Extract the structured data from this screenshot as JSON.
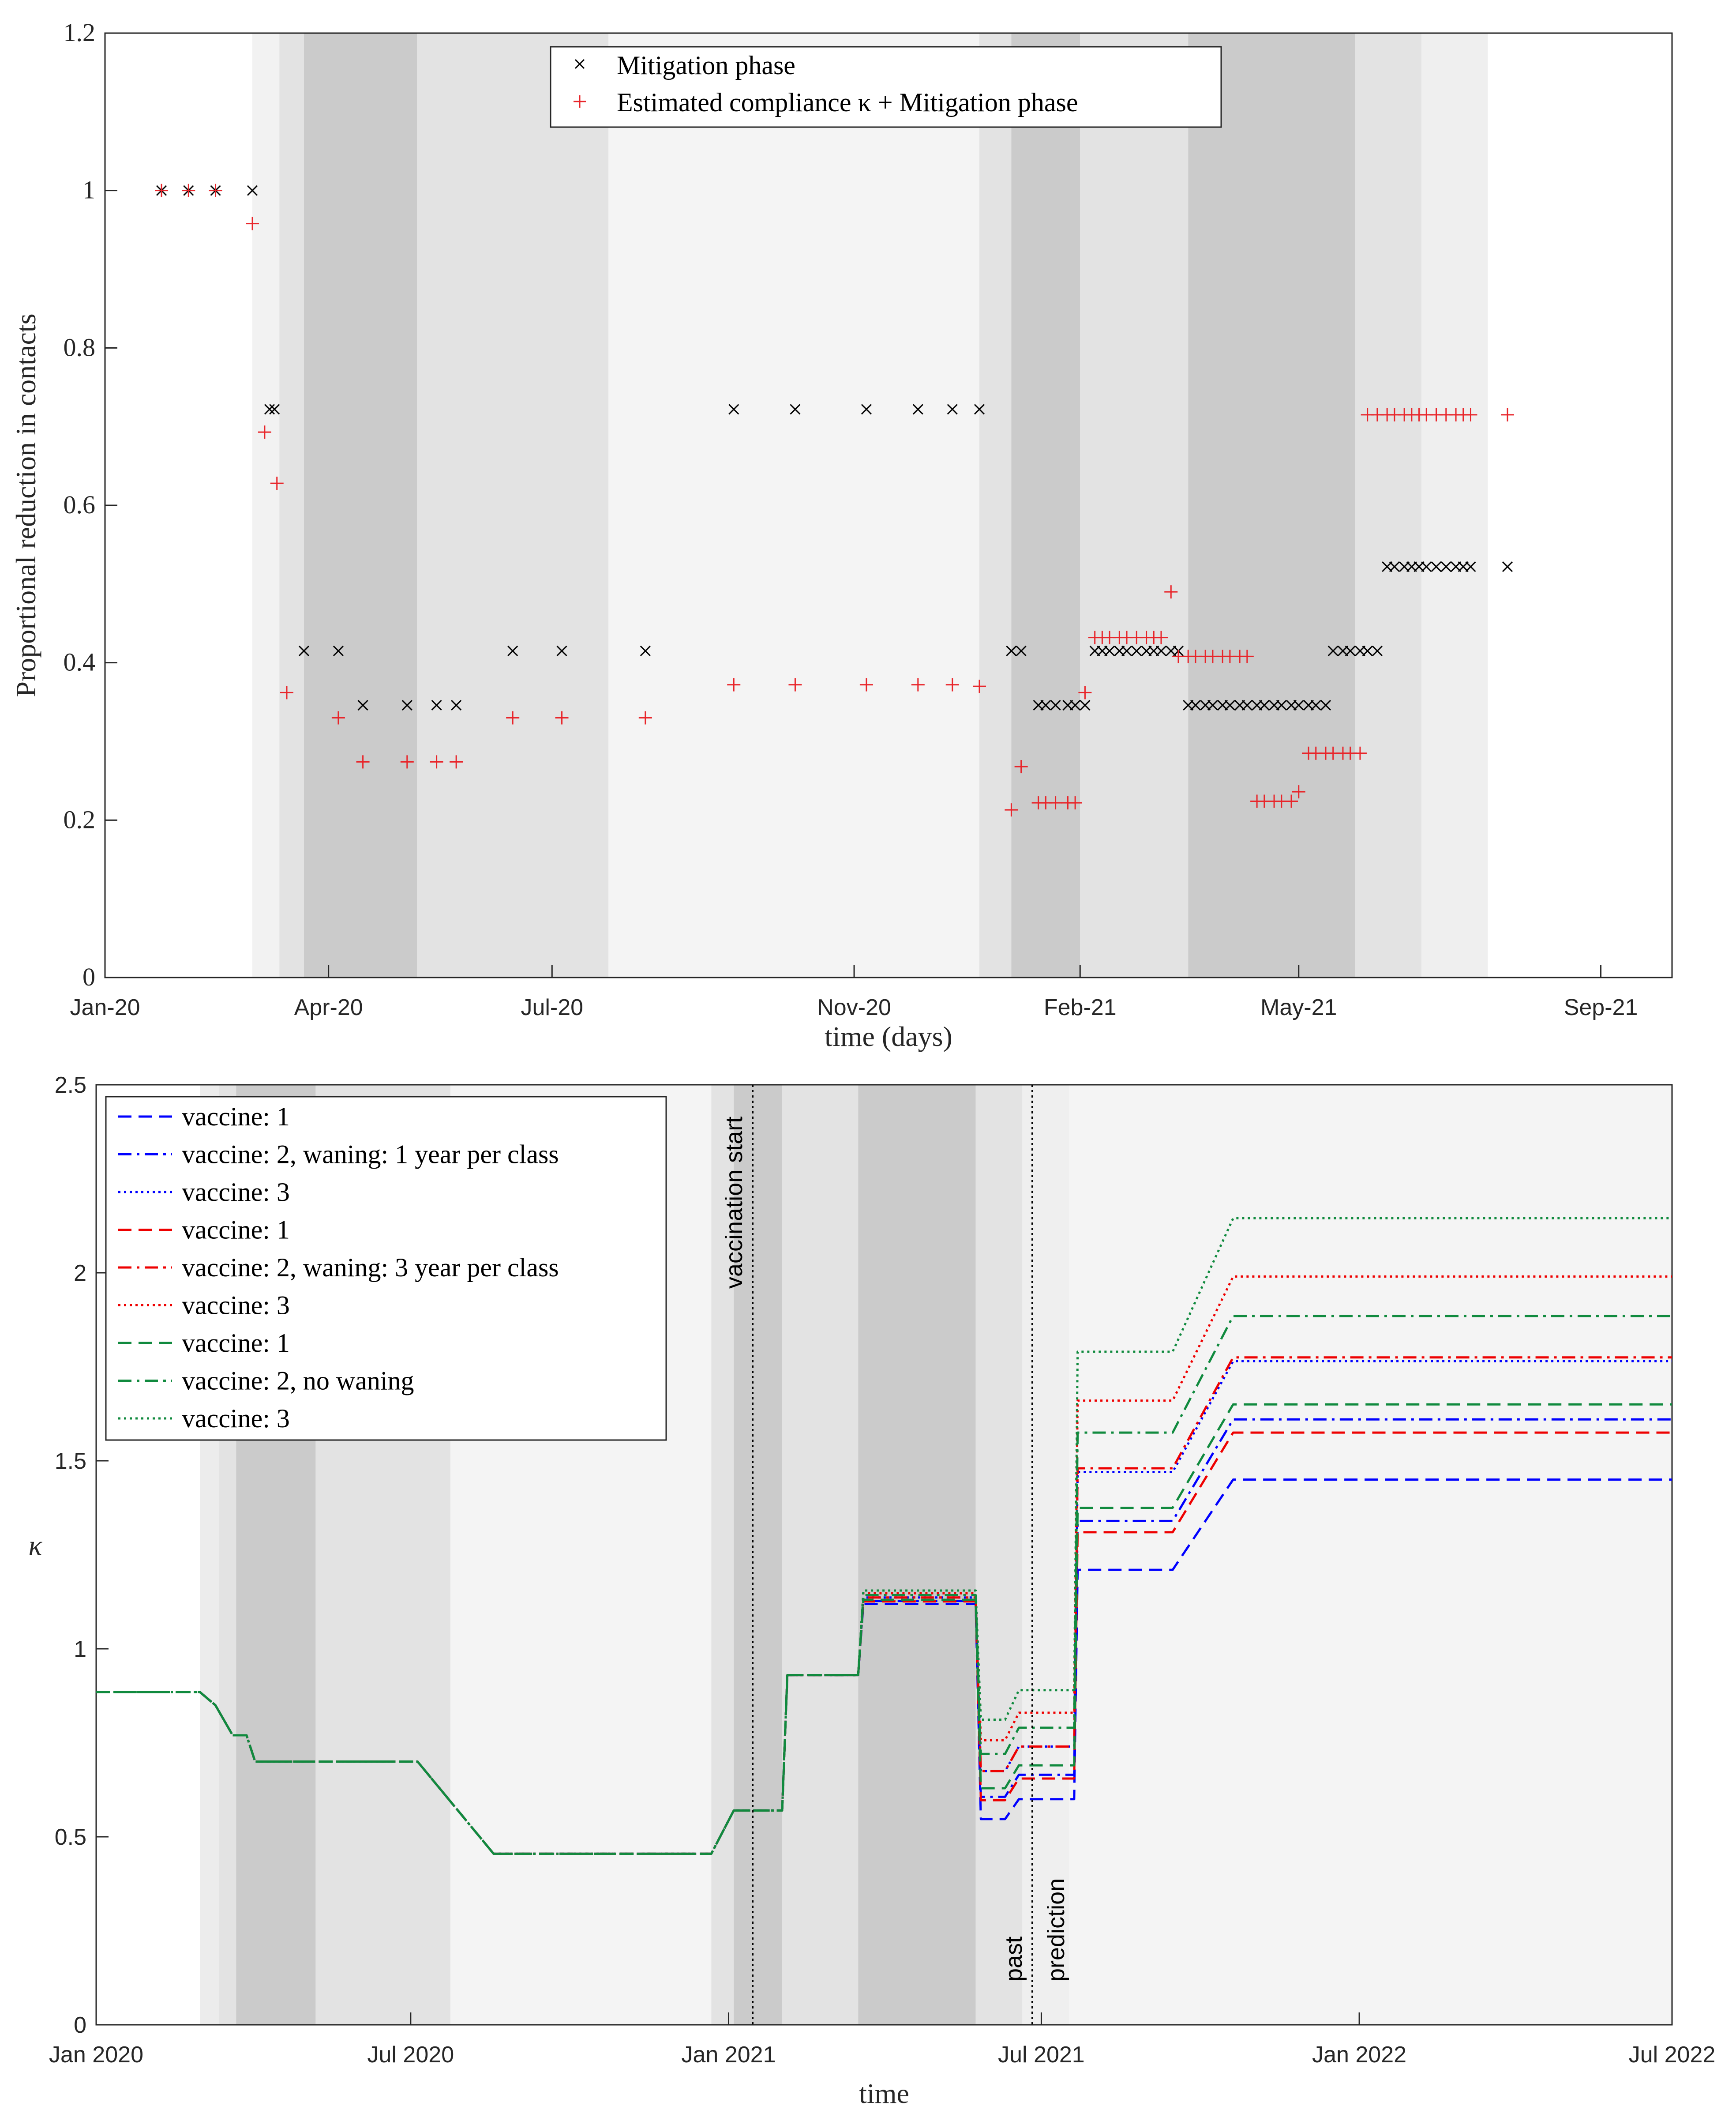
{
  "chart_data": [
    {
      "type": "scatter",
      "xlabel": "time (days)",
      "ylabel": "Proportional reduction in contacts",
      "ylim": [
        0,
        1.2
      ],
      "xlim": [
        "2020-01-01",
        "2021-09-30"
      ],
      "x_tick_labels": [
        "Jan-20",
        "Apr-20",
        "Jul-20",
        "Nov-20",
        "Feb-21",
        "May-21",
        "Sep-21"
      ],
      "y_tick_labels": [
        "0",
        "0.2",
        "0.4",
        "0.6",
        "0.8",
        "1",
        "1.2"
      ],
      "legend_position": "top-center",
      "legend": [
        "Mitigation phase",
        "Estimated compliance κ + Mitigation phase"
      ],
      "series": [
        {
          "name": "Mitigation phase",
          "marker": "x",
          "color": "#000000",
          "x": [
            "2020-01-24",
            "2020-02-04",
            "2020-02-15",
            "2020-03-01",
            "2020-03-08",
            "2020-03-10",
            "2020-03-22",
            "2020-04-05",
            "2020-04-15",
            "2020-05-03",
            "2020-05-15",
            "2020-05-23",
            "2020-06-15",
            "2020-07-05",
            "2020-08-08",
            "2020-09-13",
            "2020-10-08",
            "2020-11-06",
            "2020-11-27",
            "2020-12-11",
            "2020-12-22",
            "2021-01-04",
            "2021-01-08",
            "2021-01-15",
            "2021-01-18",
            "2021-01-22",
            "2021-01-27",
            "2021-01-30",
            "2021-02-03",
            "2021-02-07",
            "2021-02-10",
            "2021-02-13",
            "2021-02-17",
            "2021-02-20",
            "2021-02-24",
            "2021-02-28",
            "2021-03-03",
            "2021-03-06",
            "2021-03-10",
            "2021-03-13",
            "2021-03-17",
            "2021-03-20",
            "2021-03-24",
            "2021-03-27",
            "2021-03-31",
            "2021-04-03",
            "2021-04-07",
            "2021-04-10",
            "2021-04-14",
            "2021-04-17",
            "2021-04-21",
            "2021-04-24",
            "2021-04-28",
            "2021-05-01",
            "2021-05-05",
            "2021-05-08",
            "2021-05-12",
            "2021-05-15",
            "2021-05-19",
            "2021-05-22",
            "2021-05-26",
            "2021-05-29",
            "2021-06-02",
            "2021-06-06",
            "2021-06-09",
            "2021-06-13",
            "2021-06-16",
            "2021-06-19",
            "2021-06-22",
            "2021-06-26",
            "2021-06-30",
            "2021-07-04",
            "2021-07-07",
            "2021-07-10",
            "2021-07-25"
          ],
          "y": [
            1,
            1,
            1,
            1,
            0.722,
            0.722,
            0.415,
            0.415,
            0.346,
            0.346,
            0.346,
            0.346,
            0.415,
            0.415,
            0.415,
            0.722,
            0.722,
            0.722,
            0.722,
            0.722,
            0.722,
            0.415,
            0.415,
            0.346,
            0.346,
            0.346,
            0.346,
            0.346,
            0.346,
            0.415,
            0.415,
            0.415,
            0.415,
            0.415,
            0.415,
            0.415,
            0.415,
            0.415,
            0.415,
            0.415,
            0.346,
            0.346,
            0.346,
            0.346,
            0.346,
            0.346,
            0.346,
            0.346,
            0.346,
            0.346,
            0.346,
            0.346,
            0.346,
            0.346,
            0.346,
            0.346,
            0.346,
            0.415,
            0.415,
            0.415,
            0.415,
            0.415,
            0.415,
            0.522,
            0.522,
            0.522,
            0.522,
            0.522,
            0.522,
            0.522,
            0.522,
            0.522,
            0.522,
            0.522,
            0.522
          ]
        },
        {
          "name": "Estimated compliance κ + Mitigation phase",
          "marker": "+",
          "color": "#e8252a",
          "x": [
            "2020-01-24",
            "2020-02-04",
            "2020-02-15",
            "2020-03-01",
            "2020-03-06",
            "2020-03-11",
            "2020-03-15",
            "2020-04-05",
            "2020-04-15",
            "2020-05-03",
            "2020-05-15",
            "2020-05-23",
            "2020-06-15",
            "2020-07-05",
            "2020-08-08",
            "2020-09-13",
            "2020-10-08",
            "2020-11-06",
            "2020-11-27",
            "2020-12-11",
            "2020-12-22",
            "2021-01-04",
            "2021-01-08",
            "2021-01-15",
            "2021-01-18",
            "2021-01-22",
            "2021-01-27",
            "2021-01-30",
            "2021-02-03",
            "2021-02-07",
            "2021-02-10",
            "2021-02-13",
            "2021-02-17",
            "2021-02-20",
            "2021-02-24",
            "2021-02-28",
            "2021-03-03",
            "2021-03-06",
            "2021-03-10",
            "2021-03-13",
            "2021-03-17",
            "2021-03-20",
            "2021-03-24",
            "2021-03-27",
            "2021-03-31",
            "2021-04-03",
            "2021-04-07",
            "2021-04-10",
            "2021-04-14",
            "2021-04-17",
            "2021-04-21",
            "2021-04-24",
            "2021-04-28",
            "2021-05-01",
            "2021-05-05",
            "2021-05-08",
            "2021-05-12",
            "2021-05-15",
            "2021-05-19",
            "2021-05-22",
            "2021-05-26",
            "2021-05-29",
            "2021-06-02",
            "2021-06-06",
            "2021-06-09",
            "2021-06-13",
            "2021-06-16",
            "2021-06-19",
            "2021-06-22",
            "2021-06-26",
            "2021-06-30",
            "2021-07-04",
            "2021-07-07",
            "2021-07-10",
            "2021-07-25"
          ],
          "y": [
            1,
            1,
            1,
            0.958,
            0.693,
            0.628,
            0.362,
            0.33,
            0.274,
            0.274,
            0.274,
            0.274,
            0.33,
            0.33,
            0.33,
            0.372,
            0.372,
            0.372,
            0.372,
            0.372,
            0.37,
            0.213,
            0.268,
            0.222,
            0.222,
            0.222,
            0.222,
            0.222,
            0.362,
            0.432,
            0.432,
            0.432,
            0.432,
            0.432,
            0.432,
            0.432,
            0.432,
            0.432,
            0.49,
            0.408,
            0.408,
            0.408,
            0.408,
            0.408,
            0.408,
            0.408,
            0.408,
            0.408,
            0.224,
            0.224,
            0.224,
            0.224,
            0.224,
            0.236,
            0.285,
            0.285,
            0.285,
            0.285,
            0.285,
            0.285,
            0.285,
            0.715,
            0.715,
            0.715,
            0.715,
            0.715,
            0.715,
            0.715,
            0.715,
            0.715,
            0.715,
            0.715,
            0.715,
            0.715,
            0.715
          ]
        }
      ]
    },
    {
      "type": "line",
      "xlabel": "time",
      "ylabel": "κ",
      "ylim": [
        0,
        2.5
      ],
      "xlim": [
        "2020-01-01",
        "2022-07-01"
      ],
      "x_tick_labels": [
        "Jan 2020",
        "Jul 2020",
        "Jan 2021",
        "Jul 2021",
        "Jan 2022",
        "Jul 2022"
      ],
      "y_tick_labels": [
        "0",
        "0.5",
        "1",
        "1.5",
        "2",
        "2.5"
      ],
      "legend_position": "top-left",
      "annotations": [
        "vaccination start",
        "past",
        "prediction"
      ],
      "series": [
        {
          "name": "vaccine: 1",
          "color": "#0000ff",
          "dash": "dashed",
          "x": [
            "2020-01-01",
            "2021-07-20",
            "2021-09-15",
            "2021-10-20",
            "2022-07-01"
          ],
          "y": [
            0.885,
            0.6,
            1.21,
            1.45,
            1.45
          ]
        },
        {
          "name": "vaccine: 2, waning: 1 year per class",
          "color": "#0000ff",
          "dash": "dashdot",
          "x": [
            "2020-01-01",
            "2021-07-20",
            "2021-09-15",
            "2021-10-20",
            "2022-07-01"
          ],
          "y": [
            0.885,
            0.665,
            1.34,
            1.61,
            1.61
          ]
        },
        {
          "name": "vaccine: 3",
          "color": "#0000ff",
          "dash": "dotted",
          "x": [
            "2020-01-01",
            "2021-07-20",
            "2021-09-15",
            "2021-10-20",
            "2022-07-01"
          ],
          "y": [
            0.885,
            0.74,
            1.47,
            1.765,
            1.765
          ]
        },
        {
          "name": "vaccine: 1",
          "color": "#ee0000",
          "dash": "dashed",
          "x": [
            "2020-01-01",
            "2021-07-20",
            "2021-09-15",
            "2021-10-20",
            "2022-07-01"
          ],
          "y": [
            0.885,
            0.655,
            1.31,
            1.575,
            1.575
          ]
        },
        {
          "name": "vaccine: 2, waning: 3 year per class",
          "color": "#ee0000",
          "dash": "dashdot",
          "x": [
            "2020-01-01",
            "2021-07-20",
            "2021-09-15",
            "2021-10-20",
            "2022-07-01"
          ],
          "y": [
            0.885,
            0.74,
            1.48,
            1.775,
            1.775
          ]
        },
        {
          "name": "vaccine: 3",
          "color": "#ee0000",
          "dash": "dotted",
          "x": [
            "2020-01-01",
            "2021-07-20",
            "2021-09-15",
            "2021-10-20",
            "2022-07-01"
          ],
          "y": [
            0.885,
            0.83,
            1.66,
            1.99,
            1.99
          ]
        },
        {
          "name": "vaccine: 1",
          "color": "#108a3e",
          "dash": "dashed",
          "x": [
            "2020-01-01",
            "2021-07-20",
            "2021-09-15",
            "2021-10-20",
            "2022-07-01"
          ],
          "y": [
            0.885,
            0.69,
            1.375,
            1.65,
            1.65
          ]
        },
        {
          "name": "vaccine: 2, no waning",
          "color": "#108a3e",
          "dash": "dashdot",
          "x": [
            "2020-01-01",
            "2021-07-20",
            "2021-09-15",
            "2021-10-20",
            "2022-07-01"
          ],
          "y": [
            0.885,
            0.79,
            1.575,
            1.885,
            1.885
          ]
        },
        {
          "name": "vaccine: 3",
          "color": "#108a3e",
          "dash": "dotted",
          "x": [
            "2020-01-01",
            "2021-07-20",
            "2021-09-15",
            "2021-10-20",
            "2022-07-01"
          ],
          "y": [
            0.885,
            0.89,
            1.79,
            2.145,
            2.145
          ]
        }
      ]
    }
  ]
}
